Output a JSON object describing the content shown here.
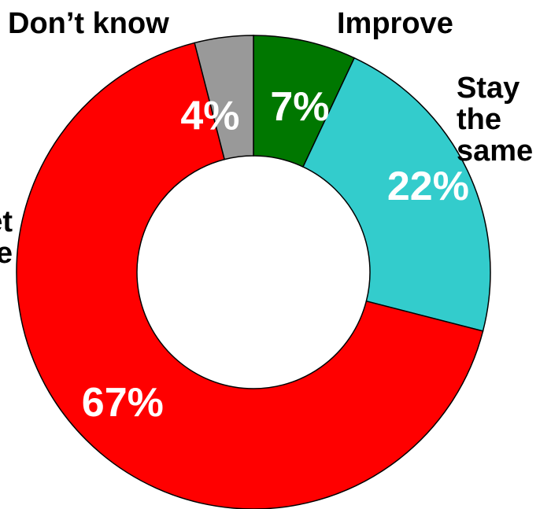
{
  "chart_data": {
    "type": "pie",
    "title": "",
    "donut": true,
    "series": [
      {
        "categories": [
          "Improve",
          "Stay the same",
          "Get worse",
          "Don’t know"
        ],
        "values": [
          7,
          22,
          67,
          4
        ],
        "labels": [
          "7%",
          "22%",
          "67%",
          "4%"
        ],
        "colors": [
          "#007700",
          "#33cccc",
          "#ff0000",
          "#999999"
        ]
      }
    ],
    "category_labels": {
      "improve": "Improve",
      "stay_line1": "Stay",
      "stay_line2": "the",
      "stay_line3": "same",
      "worse_line1": "Get",
      "worse_line2": "worse",
      "dont_know": "Don’t know"
    },
    "legend": "none",
    "grid": false
  }
}
